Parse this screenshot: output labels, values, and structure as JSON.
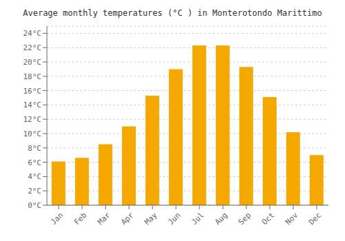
{
  "chart_data": {
    "type": "bar",
    "title": "Average monthly temperatures (°C ) in Monterotondo Marittimo",
    "categories": [
      "Jan",
      "Feb",
      "Mar",
      "Apr",
      "May",
      "Jun",
      "Jul",
      "Aug",
      "Sep",
      "Oct",
      "Nov",
      "Dec"
    ],
    "values": [
      6.1,
      6.6,
      8.5,
      11.0,
      15.3,
      19.0,
      22.3,
      22.3,
      19.3,
      15.1,
      10.2,
      7.0
    ],
    "color": "#F5A800",
    "ylim": [
      0,
      25
    ],
    "yticks": [
      {
        "value": 0,
        "label": "0°C"
      },
      {
        "value": 2,
        "label": "2°C"
      },
      {
        "value": 4,
        "label": "4°C"
      },
      {
        "value": 6,
        "label": "6°C"
      },
      {
        "value": 8,
        "label": "8°C"
      },
      {
        "value": 10,
        "label": "10°C"
      },
      {
        "value": 12,
        "label": "12°C"
      },
      {
        "value": 14,
        "label": "14°C"
      },
      {
        "value": 16,
        "label": "16°C"
      },
      {
        "value": 18,
        "label": "18°C"
      },
      {
        "value": 20,
        "label": "20°C"
      },
      {
        "value": 22,
        "label": "22°C"
      },
      {
        "value": 24,
        "label": "24°C"
      }
    ],
    "grid": true
  }
}
